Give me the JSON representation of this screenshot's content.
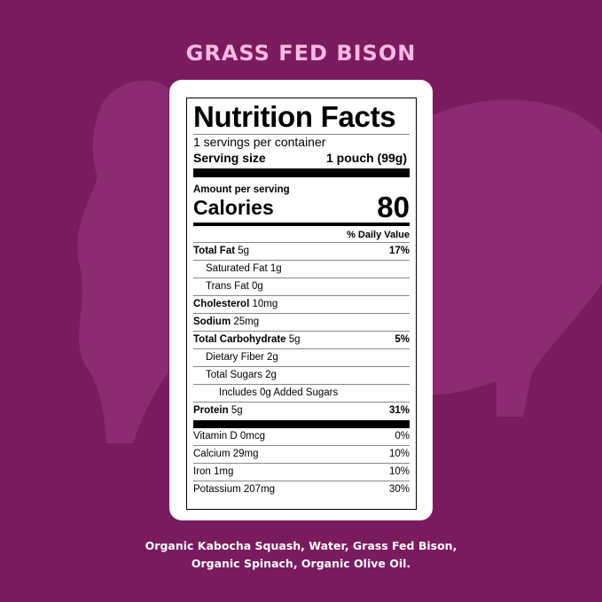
{
  "title": "GRASS FED BISON",
  "colors": {
    "background": "#7b1b5f",
    "silhouette": "#8c2b72",
    "title": "#f9b9e3"
  },
  "label": {
    "heading": "Nutrition Facts",
    "servings": "1 servings per container",
    "serving_size_label": "Serving size",
    "serving_size_value": "1 pouch (99g)",
    "amount_per_serving": "Amount per serving",
    "calories_label": "Calories",
    "calories_value": "80",
    "daily_value_header": "% Daily Value",
    "nutrients": [
      {
        "name": "Total Fat",
        "amount": "5g",
        "dv": "17%"
      },
      {
        "name": "Saturated Fat",
        "amount": "1g",
        "dv": ""
      },
      {
        "name": "Trans Fat",
        "amount": "0g",
        "dv": ""
      },
      {
        "name": "Cholesterol",
        "amount": "10mg",
        "dv": ""
      },
      {
        "name": "Sodium",
        "amount": "25mg",
        "dv": ""
      },
      {
        "name": "Total Carbohydrate",
        "amount": "5g",
        "dv": "5%"
      },
      {
        "name": "Dietary Fiber",
        "amount": "2g",
        "dv": ""
      },
      {
        "name": "Total Sugars",
        "amount": "2g",
        "dv": ""
      },
      {
        "name": "Includes 0g Added Sugars",
        "amount": "",
        "dv": ""
      },
      {
        "name": "Protein",
        "amount": "5g",
        "dv": "31%"
      }
    ],
    "vitamins": [
      {
        "name": "Vitamin D",
        "amount": "0mcg",
        "dv": "0%"
      },
      {
        "name": "Calcium",
        "amount": "29mg",
        "dv": "10%"
      },
      {
        "name": "Iron",
        "amount": "1mg",
        "dv": "10%"
      },
      {
        "name": "Potassium",
        "amount": "207mg",
        "dv": "30%"
      }
    ]
  },
  "ingredients": {
    "line1": "Organic Kabocha Squash, Water, Grass Fed Bison,",
    "line2": "Organic Spinach, Organic Olive Oil."
  }
}
